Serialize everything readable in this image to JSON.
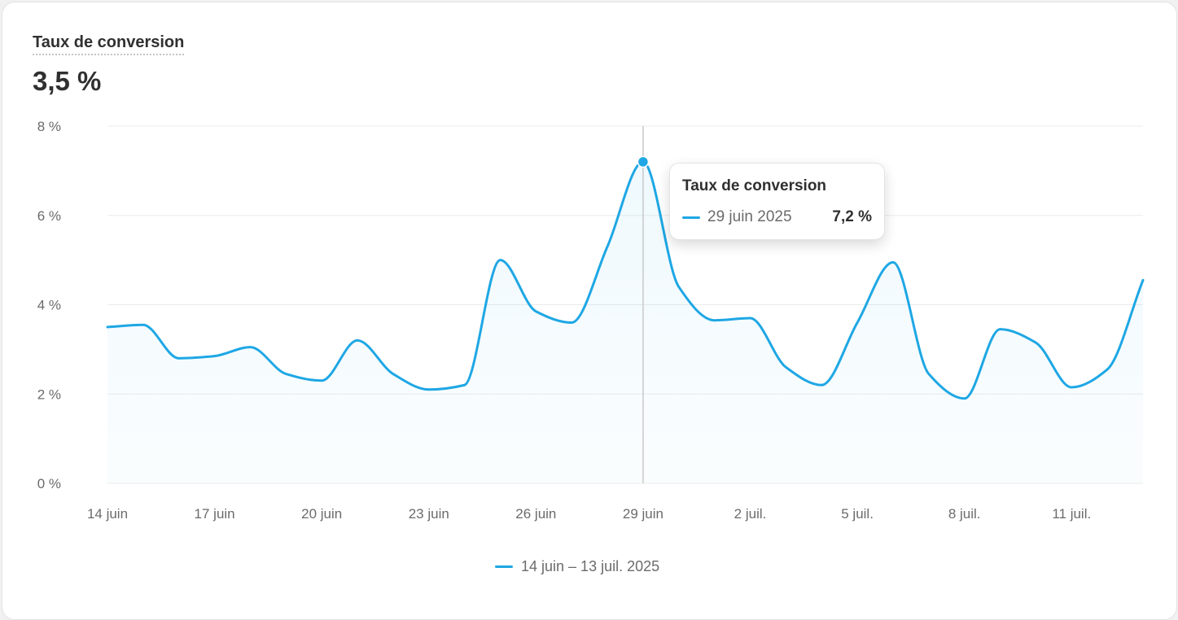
{
  "metric": {
    "title": "Taux de conversion",
    "value": "3,5 %"
  },
  "tooltip": {
    "title": "Taux de conversion",
    "date": "29 juin 2025",
    "value": "7,2 %"
  },
  "legend": {
    "label": "14 juin – 13 juil. 2025"
  },
  "colors": {
    "series": "#1ea7e4",
    "grid": "#ebebeb",
    "crosshair": "#c9c9c9",
    "text": "#303030",
    "muted": "#6b6b6b"
  },
  "chart_data": {
    "type": "area",
    "title": "Taux de conversion",
    "ylim": [
      0,
      8
    ],
    "y_unit": "%",
    "grid": true,
    "legend_position": "bottom-center",
    "y_ticks": [
      {
        "value": 0,
        "label": "0 %"
      },
      {
        "value": 2,
        "label": "2 %"
      },
      {
        "value": 4,
        "label": "4 %"
      },
      {
        "value": 6,
        "label": "6 %"
      },
      {
        "value": 8,
        "label": "8 %"
      }
    ],
    "x_ticks": [
      {
        "date": "2025-06-14",
        "label": "14 juin"
      },
      {
        "date": "2025-06-17",
        "label": "17 juin"
      },
      {
        "date": "2025-06-20",
        "label": "20 juin"
      },
      {
        "date": "2025-06-23",
        "label": "23 juin"
      },
      {
        "date": "2025-06-26",
        "label": "26 juin"
      },
      {
        "date": "2025-06-29",
        "label": "29 juin"
      },
      {
        "date": "2025-07-02",
        "label": "2 juil."
      },
      {
        "date": "2025-07-05",
        "label": "5 juil."
      },
      {
        "date": "2025-07-08",
        "label": "8 juil."
      },
      {
        "date": "2025-07-11",
        "label": "11 juil."
      }
    ],
    "highlight": {
      "date": "2025-06-29",
      "value": 7.2
    },
    "series": [
      {
        "name": "14 juin – 13 juil. 2025",
        "x": [
          "2025-06-14",
          "2025-06-15",
          "2025-06-16",
          "2025-06-17",
          "2025-06-18",
          "2025-06-19",
          "2025-06-20",
          "2025-06-21",
          "2025-06-22",
          "2025-06-23",
          "2025-06-24",
          "2025-06-25",
          "2025-06-26",
          "2025-06-27",
          "2025-06-28",
          "2025-06-29",
          "2025-06-30",
          "2025-07-01",
          "2025-07-02",
          "2025-07-03",
          "2025-07-04",
          "2025-07-05",
          "2025-07-06",
          "2025-07-07",
          "2025-07-08",
          "2025-07-09",
          "2025-07-10",
          "2025-07-11",
          "2025-07-12",
          "2025-07-13"
        ],
        "values": [
          3.5,
          3.55,
          2.8,
          2.85,
          3.05,
          2.45,
          2.3,
          3.2,
          2.45,
          2.1,
          2.2,
          5.0,
          3.85,
          3.6,
          5.3,
          7.2,
          4.4,
          3.65,
          3.7,
          2.6,
          2.2,
          3.6,
          4.95,
          2.45,
          1.9,
          3.45,
          3.15,
          2.15,
          2.55,
          4.55
        ]
      }
    ]
  }
}
